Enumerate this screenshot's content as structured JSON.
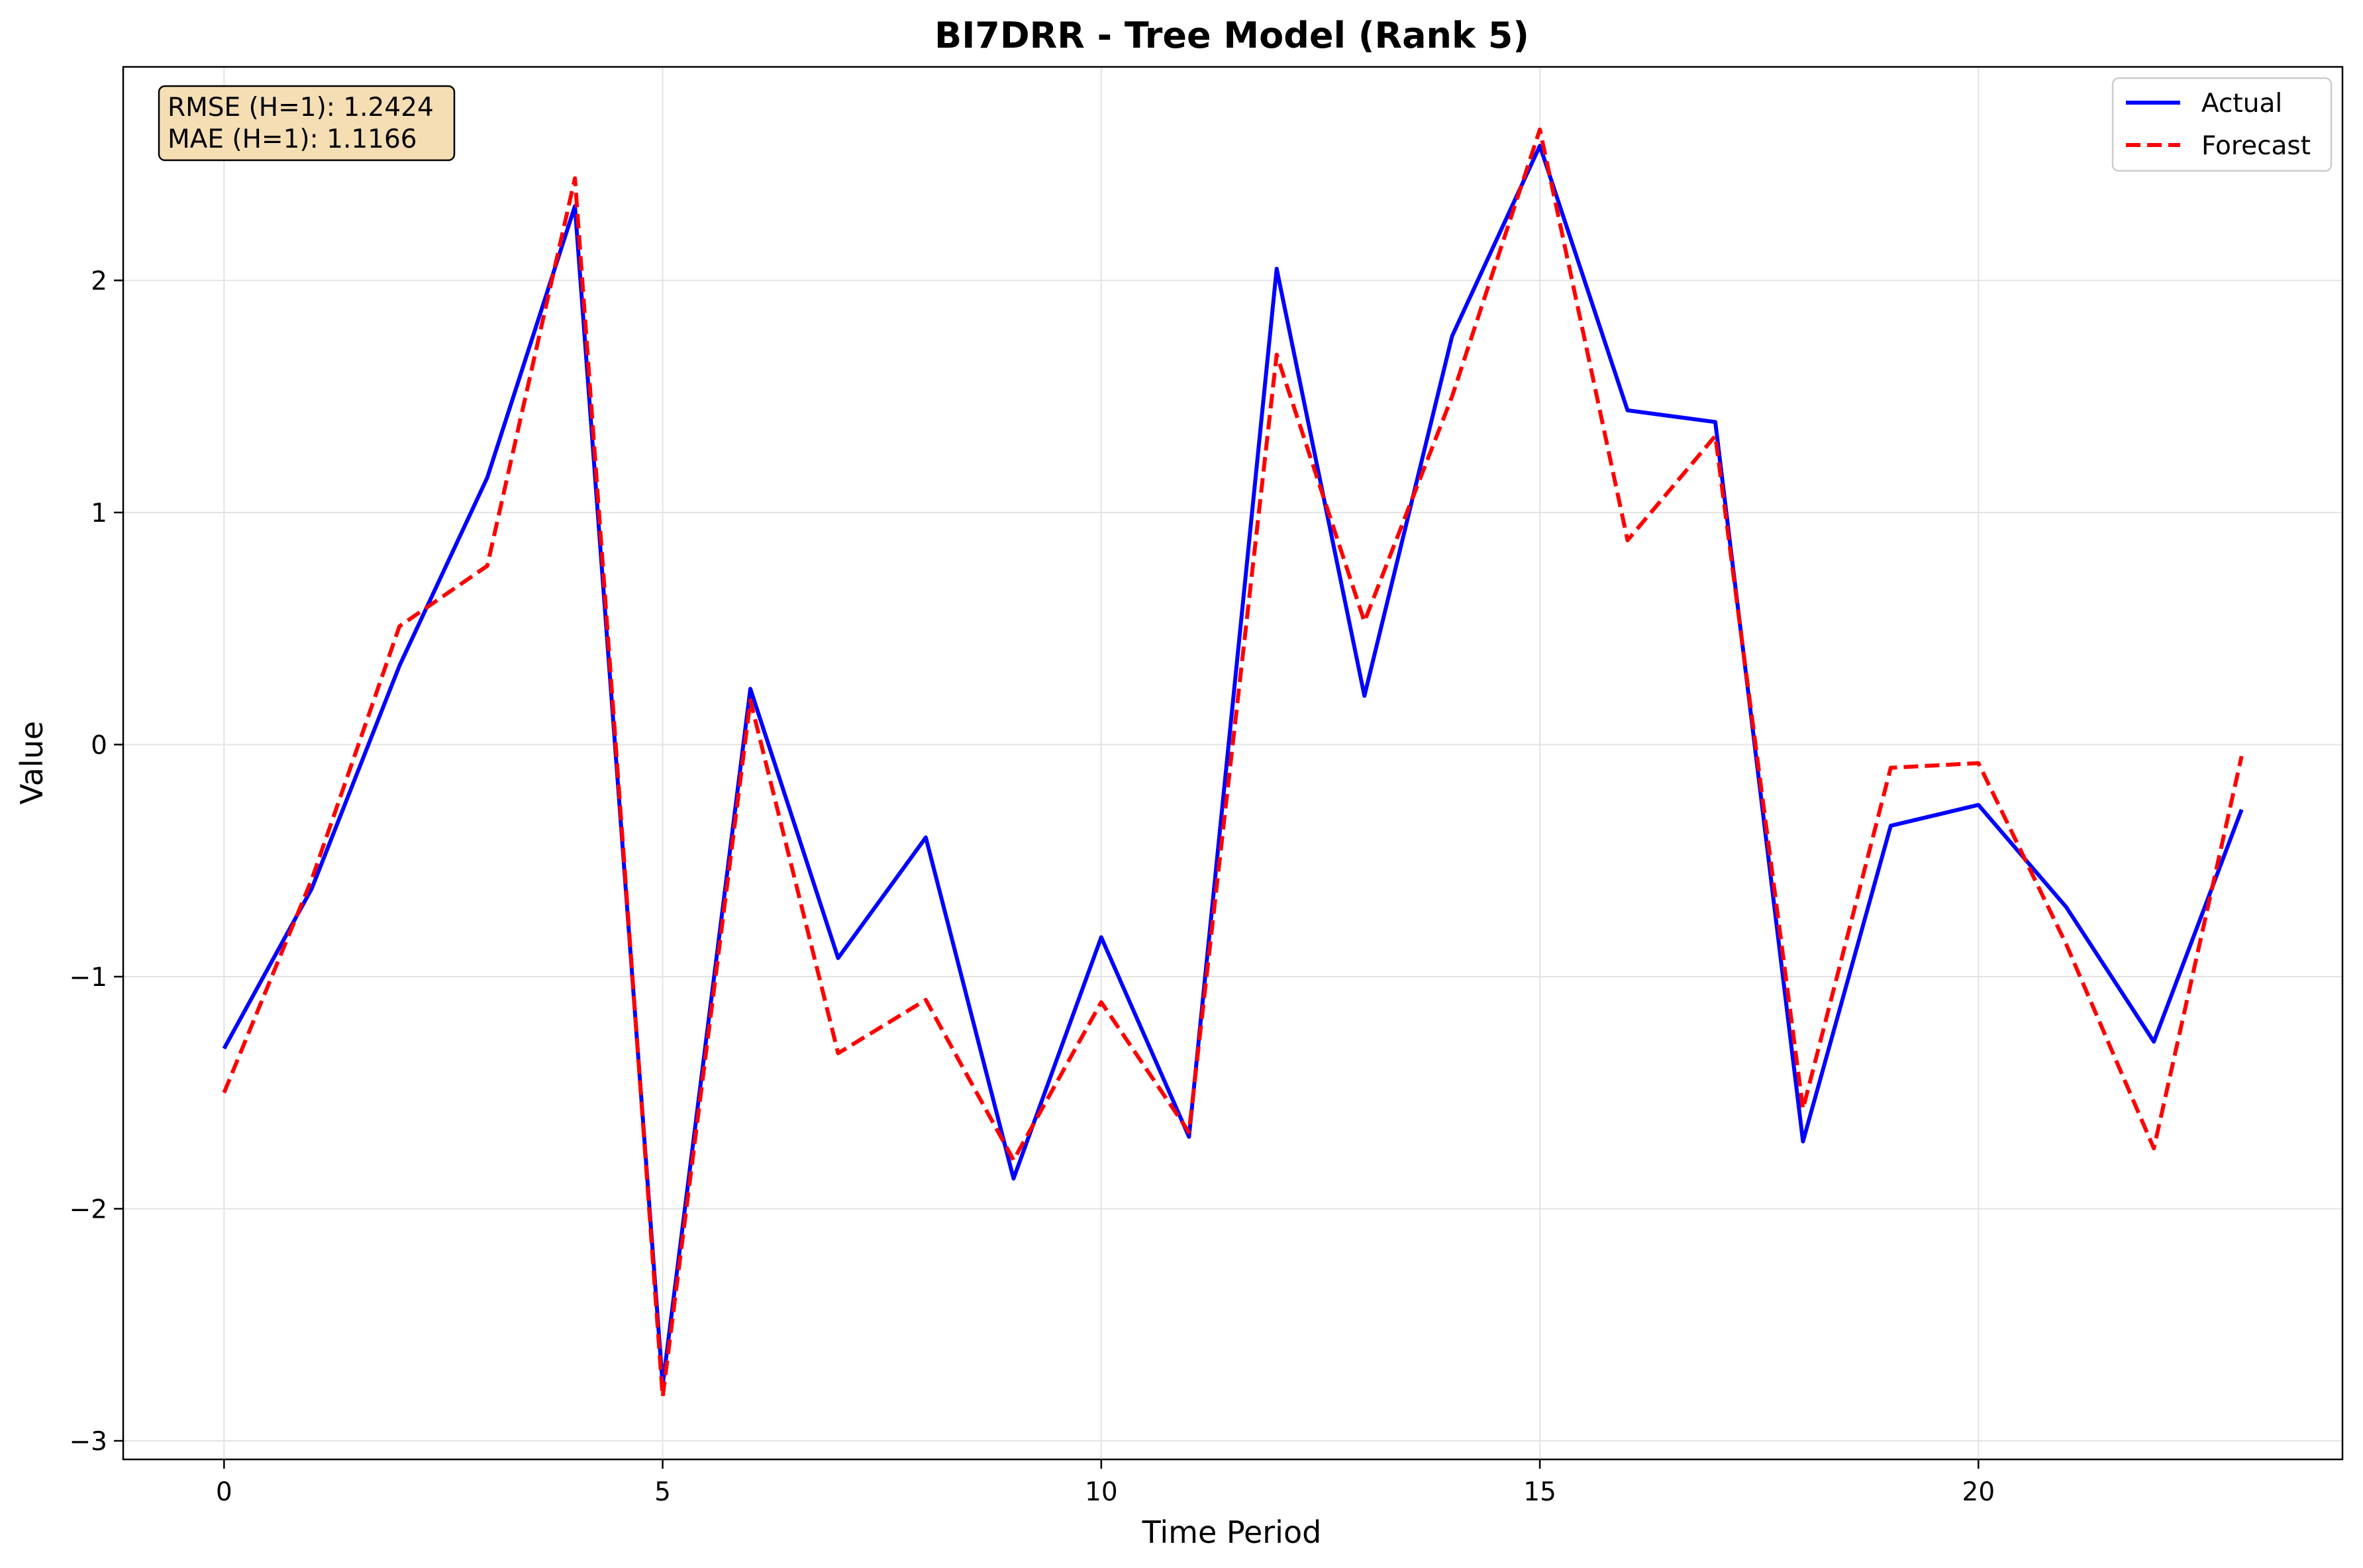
{
  "chart_data": {
    "type": "line",
    "title": "BI7DRR - Tree Model (Rank 5)",
    "xlabel": "Time Period",
    "ylabel": "Value",
    "xlim": [
      -1.15,
      24.15
    ],
    "ylim": [
      -3.08,
      2.92
    ],
    "xticks": [
      0,
      5,
      10,
      15,
      20
    ],
    "yticks": [
      -3,
      -2,
      -1,
      0,
      1,
      2
    ],
    "x": [
      0,
      1,
      2,
      3,
      4,
      5,
      6,
      7,
      8,
      9,
      10,
      11,
      12,
      13,
      14,
      15,
      16,
      17,
      18,
      19,
      20,
      21,
      22,
      23
    ],
    "series": [
      {
        "name": "Actual",
        "color": "#0000ff",
        "style": "solid",
        "values": [
          -1.31,
          -0.62,
          0.34,
          1.15,
          2.32,
          -2.76,
          0.24,
          -0.92,
          -0.4,
          -1.87,
          -0.83,
          -1.69,
          2.05,
          0.21,
          1.76,
          2.58,
          1.44,
          1.39,
          -1.71,
          -0.35,
          -0.26,
          -0.7,
          -1.28,
          -0.28
        ]
      },
      {
        "name": "Forecast",
        "color": "#ff0000",
        "style": "dashed",
        "values": [
          -1.5,
          -0.58,
          0.51,
          0.77,
          2.44,
          -2.81,
          0.19,
          -1.33,
          -1.1,
          -1.79,
          -1.11,
          -1.67,
          1.68,
          0.53,
          1.5,
          2.65,
          0.88,
          1.33,
          -1.57,
          -0.1,
          -0.08,
          -0.86,
          -1.74,
          -0.05
        ]
      }
    ],
    "grid": true,
    "legend": "top-right",
    "annotation": {
      "lines": [
        "RMSE (H=1): 1.2424",
        "MAE (H=1): 1.1166"
      ],
      "background": "#f5deb3"
    }
  }
}
